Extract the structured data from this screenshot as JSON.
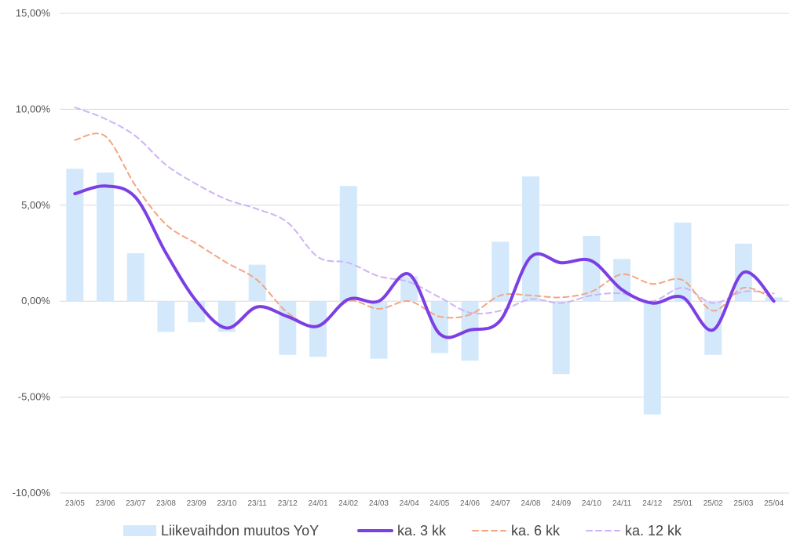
{
  "chart_data": {
    "type": "bar",
    "title": "",
    "xlabel": "",
    "ylabel": "",
    "ylim": [
      -10,
      15
    ],
    "yticks": [
      -10,
      -5,
      0,
      5,
      10,
      15
    ],
    "ytick_labels": [
      "-10,00%",
      "-5,00%",
      "0,00%",
      "5,00%",
      "10,00%",
      "15,00%"
    ],
    "grid": true,
    "legend_position": "bottom",
    "categories": [
      "23/05",
      "23/06",
      "23/07",
      "23/08",
      "23/09",
      "23/10",
      "23/11",
      "23/12",
      "24/01",
      "24/02",
      "24/03",
      "24/04",
      "24/05",
      "24/06",
      "24/07",
      "24/08",
      "24/09",
      "24/10",
      "24/11",
      "24/12",
      "25/01",
      "25/02",
      "25/03",
      "25/04"
    ],
    "bar_series": {
      "name": "Liikevaihdon muutos YoY",
      "color": "#d3e9fb",
      "values": [
        6.9,
        6.7,
        2.5,
        -1.6,
        -1.1,
        -1.6,
        1.9,
        -2.8,
        -2.9,
        6.0,
        -3.0,
        1.3,
        -2.7,
        -3.1,
        3.1,
        6.5,
        -3.8,
        3.4,
        2.2,
        -5.9,
        4.1,
        -2.8,
        3.0,
        0.2
      ]
    },
    "line_series": [
      {
        "name": "ka. 3 kk",
        "color": "#7b3fe4",
        "style": "solid",
        "values": [
          5.6,
          6.0,
          5.4,
          2.5,
          0.0,
          -1.4,
          -0.3,
          -0.8,
          -1.3,
          0.1,
          0.0,
          1.4,
          -1.7,
          -1.5,
          -1.0,
          2.3,
          2.0,
          2.1,
          0.6,
          -0.1,
          0.2,
          -1.5,
          1.5,
          0.0
        ]
      },
      {
        "name": "ka. 6 kk",
        "color": "#f4a582",
        "style": "dashed",
        "values": [
          8.4,
          8.6,
          6.0,
          4.0,
          3.0,
          2.0,
          1.1,
          -0.6,
          -1.3,
          0.0,
          -0.4,
          0.0,
          -0.8,
          -0.7,
          0.3,
          0.3,
          0.2,
          0.5,
          1.4,
          0.9,
          1.1,
          -0.5,
          0.7,
          0.1
        ]
      },
      {
        "name": "ka. 12 kk",
        "color": "#cdb4f7",
        "style": "dashed",
        "values": [
          10.1,
          9.5,
          8.6,
          7.1,
          6.1,
          5.3,
          4.8,
          4.1,
          2.3,
          2.0,
          1.3,
          1.0,
          0.2,
          -0.6,
          -0.5,
          0.1,
          -0.1,
          0.3,
          0.4,
          0.0,
          0.7,
          -0.1,
          0.5,
          0.4
        ]
      }
    ]
  }
}
